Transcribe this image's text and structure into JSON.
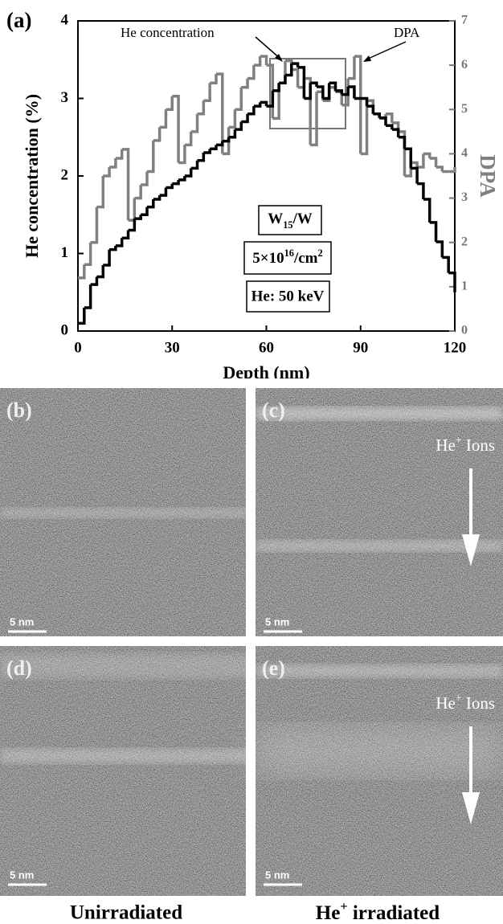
{
  "chart_data": {
    "type": "step-line",
    "panel_label": "(a)",
    "x_label": "Depth (nm)",
    "y_label": "He concentration (%)",
    "y2_label": "DPA",
    "xlim": [
      0,
      120
    ],
    "xticks": [
      0,
      30,
      60,
      90,
      120
    ],
    "ylim": [
      0,
      4
    ],
    "yticks": [
      0,
      1,
      2,
      3,
      4
    ],
    "y2lim": [
      0,
      7
    ],
    "y2ticks": [
      0,
      1,
      2,
      3,
      4,
      5,
      6,
      7
    ],
    "x": [
      0,
      2,
      4,
      6,
      8,
      10,
      12,
      14,
      16,
      18,
      20,
      22,
      24,
      26,
      28,
      30,
      32,
      34,
      36,
      38,
      40,
      42,
      44,
      46,
      48,
      50,
      52,
      54,
      56,
      58,
      60,
      62,
      64,
      66,
      68,
      70,
      72,
      74,
      76,
      78,
      80,
      82,
      84,
      86,
      88,
      90,
      92,
      94,
      96,
      98,
      100,
      102,
      104,
      106,
      108,
      110,
      112,
      114,
      116,
      118,
      120
    ],
    "series": [
      {
        "name": "DPA",
        "color": "#808080",
        "axis": "y2",
        "values": [
          1.2,
          1.5,
          2.0,
          2.8,
          3.5,
          3.7,
          3.9,
          4.1,
          2.5,
          3.0,
          3.3,
          3.6,
          4.3,
          4.6,
          5.0,
          5.3,
          3.8,
          4.2,
          4.5,
          4.9,
          5.2,
          5.6,
          5.8,
          4.0,
          4.6,
          5.0,
          5.5,
          5.7,
          6.0,
          6.2,
          6.0,
          4.8,
          5.6,
          6.1,
          5.9,
          5.5,
          5.7,
          4.2,
          5.4,
          5.2,
          5.5,
          5.4,
          5.1,
          5.7,
          6.2,
          4.0,
          5.2,
          4.9,
          4.8,
          4.9,
          4.7,
          4.5,
          3.5,
          3.8,
          3.7,
          4.0,
          3.9,
          3.7,
          3.6,
          3.6,
          3.7
        ]
      },
      {
        "name": "He concentration",
        "color": "#000000",
        "axis": "y",
        "values": [
          0.1,
          0.3,
          0.6,
          0.7,
          0.85,
          1.05,
          1.1,
          1.2,
          1.3,
          1.45,
          1.5,
          1.6,
          1.7,
          1.75,
          1.85,
          1.9,
          1.95,
          2.0,
          2.1,
          2.2,
          2.3,
          2.35,
          2.4,
          2.45,
          2.5,
          2.6,
          2.7,
          2.8,
          2.9,
          2.95,
          2.9,
          3.1,
          3.2,
          3.3,
          3.45,
          3.4,
          3.0,
          3.2,
          3.15,
          3.0,
          3.2,
          3.1,
          3.05,
          3.15,
          3.0,
          3.0,
          2.9,
          2.8,
          2.75,
          2.65,
          2.6,
          2.5,
          2.35,
          2.1,
          1.9,
          1.7,
          1.4,
          1.15,
          0.95,
          0.75,
          0.5
        ]
      }
    ],
    "annotations": {
      "sample": {
        "base": "W",
        "sub": "15",
        "rest": "/W"
      },
      "fluence": {
        "base": "5×10",
        "sup": "16",
        "mid": "/cm",
        "sup2": "2"
      },
      "energy": "He:  50 keV"
    }
  },
  "panels": [
    {
      "label": "(b)",
      "scale_bar": "5 nm"
    },
    {
      "label": "(c)",
      "scale_bar": "5 nm",
      "ions": {
        "base": "He",
        "sup": "+",
        "rest": " Ions"
      }
    },
    {
      "label": "(d)",
      "scale_bar": "5 nm"
    },
    {
      "label": "(e)",
      "scale_bar": "5 nm",
      "ions": {
        "base": "He",
        "sup": "+",
        "rest": " Ions"
      }
    }
  ],
  "captions": [
    "Unirradiated",
    {
      "base": "He",
      "sup": "+",
      "rest": " irradiated"
    }
  ]
}
